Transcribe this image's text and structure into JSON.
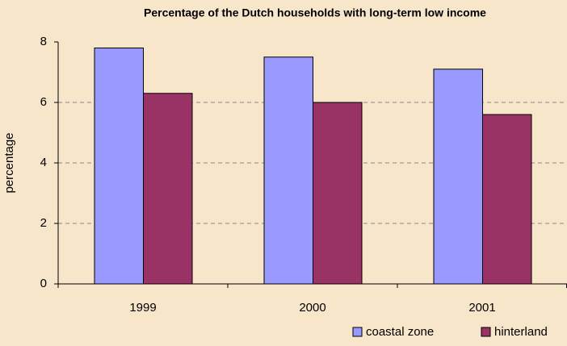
{
  "chart_data": {
    "type": "bar",
    "title": "Percentage of the Dutch households with long-term low income",
    "y_label": "percentage",
    "categories": [
      "1999",
      "2000",
      "2001"
    ],
    "series": [
      {
        "name": "coastal zone",
        "color": "#9999ff",
        "values": [
          7.8,
          7.5,
          7.1
        ]
      },
      {
        "name": "hinterland",
        "color": "#993366",
        "values": [
          6.3,
          6.0,
          5.6
        ]
      }
    ],
    "ylim": [
      0,
      8
    ],
    "yticks": [
      0,
      2,
      4,
      6,
      8
    ],
    "grid": true,
    "legend": "bottom-right"
  }
}
